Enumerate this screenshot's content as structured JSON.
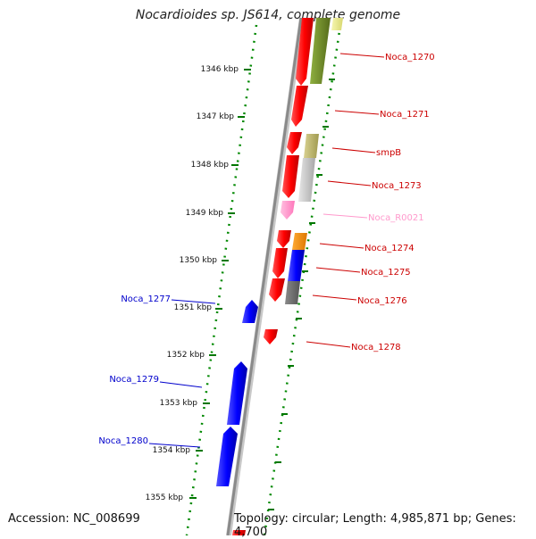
{
  "title": "Nocardioides sp. JS614, complete genome",
  "footer": {
    "accession": "Accession: NC_008699",
    "summary": "Topology: circular; Length: 4,985,871 bp; Genes: 4,700"
  },
  "ticks": [
    "1346 kbp",
    "1347 kbp",
    "1348 kbp",
    "1349 kbp",
    "1350 kbp",
    "1351 kbp",
    "1352 kbp",
    "1353 kbp",
    "1354 kbp",
    "1355 kbp"
  ],
  "genes_right": [
    {
      "label": "Noca_1270",
      "color": "#cc0000"
    },
    {
      "label": "Noca_1271",
      "color": "#cc0000"
    },
    {
      "label": "smpB",
      "color": "#cc0000"
    },
    {
      "label": "Noca_1273",
      "color": "#cc0000"
    },
    {
      "label": "Noca_R0021",
      "color": "#ff99cc"
    },
    {
      "label": "Noca_1274",
      "color": "#cc0000"
    },
    {
      "label": "Noca_1275",
      "color": "#cc0000"
    },
    {
      "label": "Noca_1276",
      "color": "#cc0000"
    },
    {
      "label": "Noca_1278",
      "color": "#cc0000"
    }
  ],
  "genes_left": [
    {
      "label": "Noca_1277",
      "color": "#0000cc"
    },
    {
      "label": "Noca_1279",
      "color": "#0000cc"
    },
    {
      "label": "Noca_1280",
      "color": "#0000cc"
    }
  ],
  "colors": {
    "forward_strand": "#ff0000",
    "reverse_strand": "#0000ff",
    "backbone": "#8a8a8a",
    "tick_marks": "#007700",
    "cog_olive": "#6b8e23",
    "cog_khaki": "#bdb76b",
    "cog_silver": "#c0c0c0",
    "cog_orange": "#ff8c00",
    "cog_blue": "#0000ff",
    "cog_gray": "#666666",
    "cog_yellow": "#eeee88",
    "rna_pink": "#ff88cc"
  }
}
